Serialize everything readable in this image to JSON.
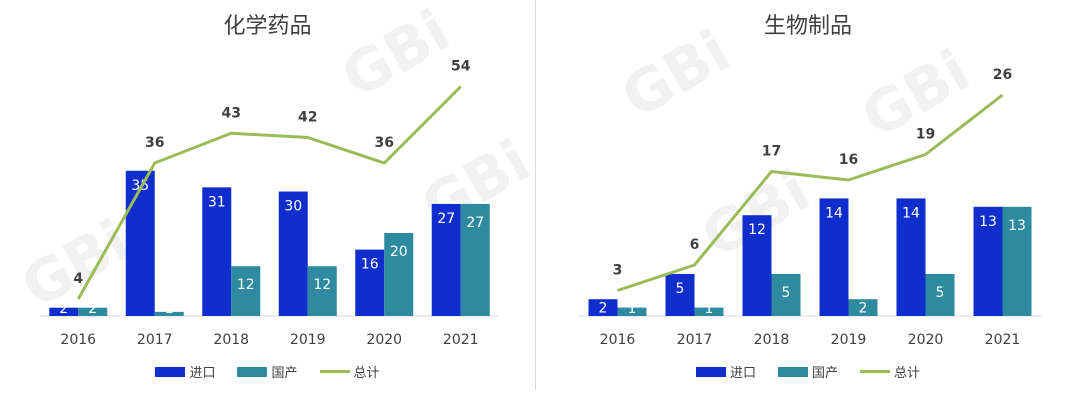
{
  "watermark": "GBi",
  "legend": {
    "import_label": "进口",
    "domestic_label": "国产",
    "total_label": "总计"
  },
  "colors": {
    "import": "#0f2ecb",
    "domestic": "#2e8a9e",
    "total": "#9bbb59"
  },
  "chart_data": [
    {
      "type": "bar",
      "title": "化学药品",
      "categories": [
        "2016",
        "2017",
        "2018",
        "2019",
        "2020",
        "2021"
      ],
      "series": [
        {
          "name": "进口",
          "values": [
            2,
            35,
            31,
            30,
            16,
            27
          ]
        },
        {
          "name": "国产",
          "values": [
            2,
            1,
            12,
            12,
            20,
            27
          ]
        },
        {
          "name": "总计",
          "type": "line",
          "values": [
            4,
            36,
            43,
            42,
            36,
            54
          ]
        }
      ]
    },
    {
      "type": "bar",
      "title": "生物制品",
      "categories": [
        "2016",
        "2017",
        "2018",
        "2019",
        "2020",
        "2021"
      ],
      "series": [
        {
          "name": "进口",
          "values": [
            2,
            5,
            12,
            14,
            14,
            13
          ]
        },
        {
          "name": "国产",
          "values": [
            1,
            1,
            5,
            2,
            5,
            13
          ]
        },
        {
          "name": "总计",
          "type": "line",
          "values": [
            3,
            6,
            17,
            16,
            19,
            26
          ]
        }
      ]
    }
  ]
}
